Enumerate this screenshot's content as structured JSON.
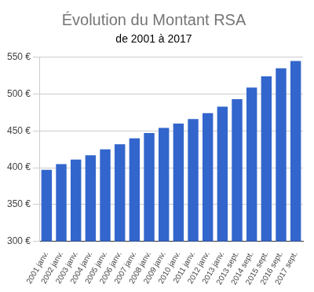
{
  "chart_data": {
    "type": "bar",
    "title": "Évolution du Montant RSA",
    "subtitle": "de 2001 à 2017",
    "categories": [
      "2001 janv.",
      "2002 janv.",
      "2003 janv.",
      "2004 janv.",
      "2005 janv.",
      "2006 janv.",
      "2007 janv.",
      "2008 janv.",
      "2009 janv.",
      "2010 janv.",
      "2011 janv.",
      "2012 janv.",
      "2013 janv.",
      "2013 sept.",
      "2014 sept.",
      "2015 sept.",
      "2016 sept.",
      "2017 sept."
    ],
    "values": [
      397,
      405,
      411,
      417,
      425,
      432,
      440,
      447,
      454,
      460,
      466,
      474,
      483,
      493,
      509,
      524,
      535,
      545
    ],
    "color": "#3366cc",
    "ylim": [
      300,
      550
    ],
    "yticks": [
      {
        "value": 300,
        "label": "300 €"
      },
      {
        "value": 350,
        "label": "350 €"
      },
      {
        "value": 400,
        "label": "400 €"
      },
      {
        "value": 450,
        "label": "450 €"
      },
      {
        "value": 500,
        "label": "500 €"
      },
      {
        "value": 550,
        "label": "550 €"
      }
    ],
    "grid": true
  }
}
